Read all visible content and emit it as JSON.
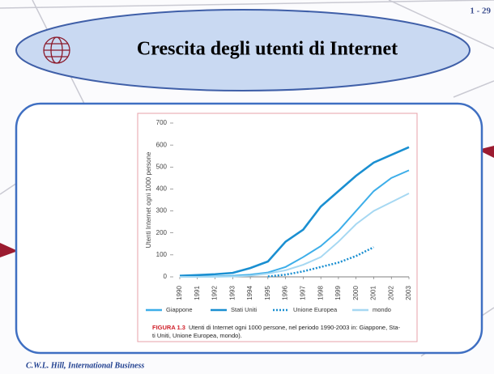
{
  "slide": {
    "number": "1 - 29",
    "title": "Crescita degli utenti di Internet",
    "footer": "C.W.L. Hill,  International Business"
  },
  "chart_data": {
    "type": "line",
    "ylabel": "Utenti Internet ogni 1000 persone",
    "categories": [
      "1990",
      "1991",
      "1992",
      "1993",
      "1994",
      "1995",
      "1996",
      "1997",
      "1998",
      "1999",
      "2000",
      "2001",
      "2002",
      "2003"
    ],
    "ylim": [
      0,
      700
    ],
    "yticks": [
      0,
      100,
      200,
      300,
      400,
      500,
      600,
      700
    ],
    "series": [
      {
        "name": "Giappone",
        "color": "#3daee9",
        "dash": "solid",
        "values": [
          0,
          0,
          2,
          5,
          10,
          20,
          45,
          90,
          140,
          210,
          300,
          390,
          450,
          485
        ]
      },
      {
        "name": "Stati Uniti",
        "color": "#1a8fd1",
        "dash": "solid",
        "values": [
          5,
          8,
          12,
          18,
          40,
          70,
          160,
          215,
          320,
          390,
          460,
          520,
          555,
          590
        ]
      },
      {
        "name": "Unione Europea",
        "color": "#1a8fd1",
        "dash": "dotted",
        "values": [
          null,
          null,
          null,
          null,
          null,
          2,
          10,
          25,
          45,
          65,
          95,
          135,
          null,
          null
        ]
      },
      {
        "name": "mondo",
        "color": "#a6d8f2",
        "dash": "solid",
        "values": [
          0,
          0,
          0,
          2,
          5,
          15,
          30,
          55,
          90,
          160,
          240,
          300,
          340,
          380
        ]
      }
    ],
    "caption_label": "FIGURA 1.3",
    "caption_lines": [
      "Utenti di Internet ogni 1000 persone, nel periodo 1990-2003 in: Giappone, Sta-",
      "ti Uniti, Unione Europea, mondo)."
    ]
  }
}
